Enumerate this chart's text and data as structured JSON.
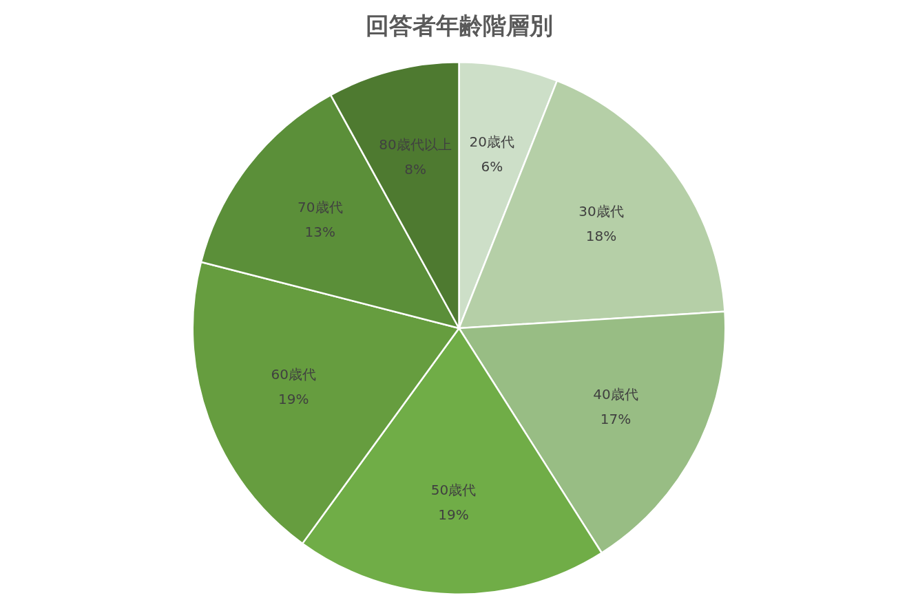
{
  "chart_data": {
    "type": "pie",
    "title": "回答者年齢階層別",
    "categories": [
      "20歳代",
      "30歳代",
      "40歳代",
      "50歳代",
      "60歳代",
      "70歳代",
      "80歳代以上"
    ],
    "values": [
      6,
      18,
      17,
      19,
      19,
      13,
      8
    ],
    "value_labels": [
      "6%",
      "18%",
      "17%",
      "19%",
      "19%",
      "13%",
      "8%"
    ],
    "colors": [
      "#cddfc8",
      "#b5cfa7",
      "#98bd84",
      "#70ad47",
      "#669d3f",
      "#5b8f39",
      "#4e7a30"
    ],
    "legend": false
  }
}
